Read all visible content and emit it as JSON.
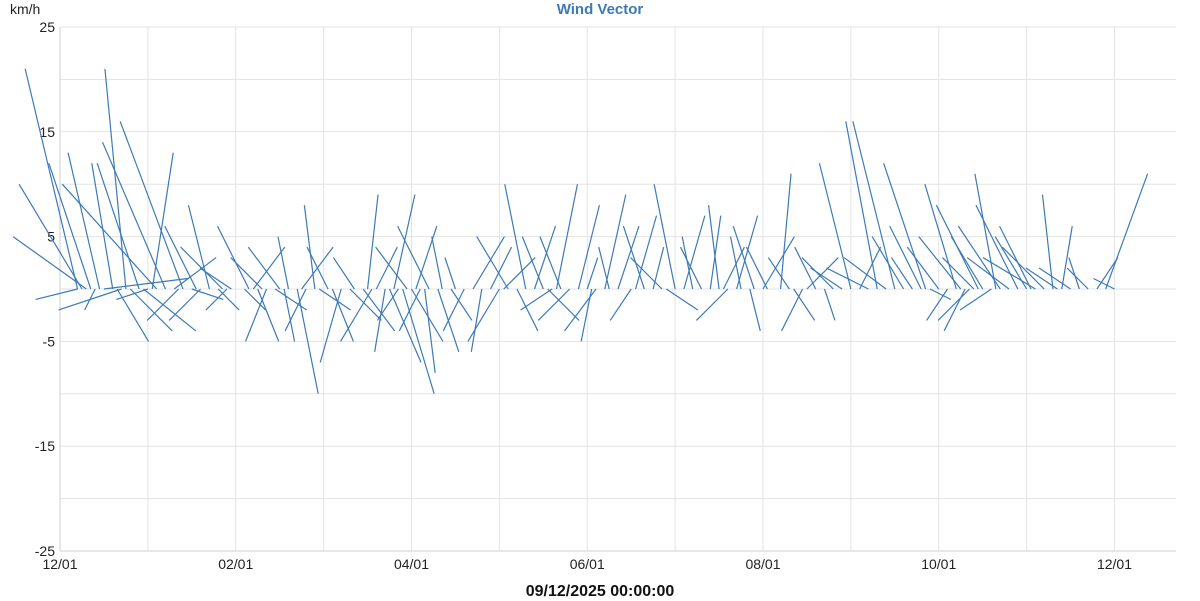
{
  "chart_data": {
    "type": "line",
    "subtype": "wind-vector",
    "title": "Wind Vector",
    "ylabel": "km/h",
    "ylim": [
      -25,
      25
    ],
    "yticks": [
      25,
      15,
      5,
      -5,
      -15,
      -25
    ],
    "x_tick_labels": [
      "12/01",
      "02/01",
      "04/01",
      "06/01",
      "08/01",
      "10/01",
      "12/01"
    ],
    "xlim_months": [
      0,
      12.7
    ],
    "grid": true,
    "line_color": "#3d7ab5",
    "footer": "09/12/2025 00:00:00",
    "series": [
      {
        "vectors": [
          {
            "t": 0.2,
            "u": -4,
            "v": -1
          },
          {
            "t": 0.2,
            "u": -5,
            "v": 21
          },
          {
            "t": 0.25,
            "u": -6,
            "v": 10
          },
          {
            "t": 0.3,
            "u": -7,
            "v": 5
          },
          {
            "t": 0.35,
            "u": -4,
            "v": 12
          },
          {
            "t": 0.4,
            "u": -1,
            "v": -2
          },
          {
            "t": 0.45,
            "u": -3,
            "v": 13
          },
          {
            "t": 0.5,
            "u": 8,
            "v": 1
          },
          {
            "t": 0.6,
            "u": -2,
            "v": 12
          },
          {
            "t": 0.65,
            "u": 3,
            "v": -5
          },
          {
            "t": 0.7,
            "u": -6,
            "v": -2
          },
          {
            "t": 0.75,
            "u": -2,
            "v": 21
          },
          {
            "t": 0.8,
            "u": 4,
            "v": -4
          },
          {
            "t": 0.9,
            "u": -4,
            "v": 12
          },
          {
            "t": 0.95,
            "u": 5,
            "v": -4
          },
          {
            "t": 1.0,
            "u": -3,
            "v": -1
          },
          {
            "t": 1.05,
            "u": 2,
            "v": 13
          },
          {
            "t": 1.1,
            "u": -9,
            "v": 10
          },
          {
            "t": 1.2,
            "u": -6,
            "v": 14
          },
          {
            "t": 1.3,
            "u": 4,
            "v": 3
          },
          {
            "t": 1.35,
            "u": -3,
            "v": -3
          },
          {
            "t": 1.4,
            "u": -6,
            "v": 16
          },
          {
            "t": 1.5,
            "u": 3,
            "v": -1
          },
          {
            "t": 1.55,
            "u": -3,
            "v": 6
          },
          {
            "t": 1.6,
            "u": -3,
            "v": -3
          },
          {
            "t": 1.7,
            "u": -2,
            "v": 8
          },
          {
            "t": 1.8,
            "u": 2,
            "v": -2
          },
          {
            "t": 1.85,
            "u": -4,
            "v": 4
          },
          {
            "t": 1.9,
            "u": -2,
            "v": -2
          },
          {
            "t": 1.95,
            "u": -3,
            "v": 2
          },
          {
            "t": 2.1,
            "u": 2,
            "v": -2
          },
          {
            "t": 2.15,
            "u": -3,
            "v": 6
          },
          {
            "t": 2.2,
            "u": 3,
            "v": 4
          },
          {
            "t": 2.25,
            "u": 2,
            "v": -5
          },
          {
            "t": 2.3,
            "u": -3,
            "v": 3
          },
          {
            "t": 2.35,
            "u": -2,
            "v": -5
          },
          {
            "t": 2.45,
            "u": 3,
            "v": -2
          },
          {
            "t": 2.5,
            "u": -3,
            "v": 4
          },
          {
            "t": 2.55,
            "u": 1,
            "v": -5
          },
          {
            "t": 2.6,
            "u": -1,
            "v": 5
          },
          {
            "t": 2.7,
            "u": 2,
            "v": -10
          },
          {
            "t": 2.75,
            "u": 3,
            "v": 4
          },
          {
            "t": 2.8,
            "u": -2,
            "v": -4
          },
          {
            "t": 2.9,
            "u": -1,
            "v": 8
          },
          {
            "t": 2.95,
            "u": 3,
            "v": -2
          },
          {
            "t": 3.05,
            "u": -2,
            "v": 4
          },
          {
            "t": 3.1,
            "u": 2,
            "v": -5
          },
          {
            "t": 3.2,
            "u": -2,
            "v": -7
          },
          {
            "t": 3.3,
            "u": 3,
            "v": -3
          },
          {
            "t": 3.35,
            "u": -2,
            "v": 3
          },
          {
            "t": 3.45,
            "u": 3,
            "v": -4
          },
          {
            "t": 3.5,
            "u": 1,
            "v": 9
          },
          {
            "t": 3.55,
            "u": -3,
            "v": -5
          },
          {
            "t": 3.6,
            "u": 2,
            "v": 4
          },
          {
            "t": 3.7,
            "u": -1,
            "v": -6
          },
          {
            "t": 3.75,
            "u": 3,
            "v": -7
          },
          {
            "t": 3.8,
            "u": 2,
            "v": 9
          },
          {
            "t": 3.85,
            "u": -2,
            "v": -3
          },
          {
            "t": 3.9,
            "u": 3,
            "v": -10
          },
          {
            "t": 3.95,
            "u": -3,
            "v": 4
          },
          {
            "t": 4.0,
            "u": 3,
            "v": -5
          },
          {
            "t": 4.05,
            "u": 2,
            "v": 6
          },
          {
            "t": 4.1,
            "u": -2,
            "v": -4
          },
          {
            "t": 4.15,
            "u": 1,
            "v": -8
          },
          {
            "t": 4.2,
            "u": -3,
            "v": 6
          },
          {
            "t": 4.3,
            "u": 2,
            "v": -6
          },
          {
            "t": 4.35,
            "u": -1,
            "v": 5
          },
          {
            "t": 4.45,
            "u": 2,
            "v": -3
          },
          {
            "t": 4.5,
            "u": -1,
            "v": 3
          },
          {
            "t": 4.6,
            "u": -2,
            "v": -4
          },
          {
            "t": 4.7,
            "u": 3,
            "v": 5
          },
          {
            "t": 4.8,
            "u": -1,
            "v": -6
          },
          {
            "t": 4.9,
            "u": 2,
            "v": 4
          },
          {
            "t": 5.0,
            "u": -3,
            "v": -5
          },
          {
            "t": 5.05,
            "u": 3,
            "v": 3
          },
          {
            "t": 5.1,
            "u": -3,
            "v": 5
          },
          {
            "t": 5.2,
            "u": 2,
            "v": -4
          },
          {
            "t": 5.3,
            "u": -2,
            "v": 10
          },
          {
            "t": 5.4,
            "u": 2,
            "v": 6
          },
          {
            "t": 5.5,
            "u": -2,
            "v": 5
          },
          {
            "t": 5.55,
            "u": 3,
            "v": -3
          },
          {
            "t": 5.6,
            "u": -3,
            "v": -2
          },
          {
            "t": 5.65,
            "u": 2,
            "v": 10
          },
          {
            "t": 5.7,
            "u": -2,
            "v": 5
          },
          {
            "t": 5.8,
            "u": -3,
            "v": -3
          },
          {
            "t": 5.9,
            "u": 2,
            "v": 8
          },
          {
            "t": 6.0,
            "u": 1,
            "v": 3
          },
          {
            "t": 6.05,
            "u": -1,
            "v": -5
          },
          {
            "t": 6.1,
            "u": -3,
            "v": -4
          },
          {
            "t": 6.2,
            "u": 2,
            "v": 9
          },
          {
            "t": 6.25,
            "u": -1,
            "v": 4
          },
          {
            "t": 6.35,
            "u": 2,
            "v": 6
          },
          {
            "t": 6.5,
            "u": -2,
            "v": -3
          },
          {
            "t": 6.55,
            "u": 2,
            "v": 7
          },
          {
            "t": 6.65,
            "u": -2,
            "v": 6
          },
          {
            "t": 6.75,
            "u": 1,
            "v": 4
          },
          {
            "t": 6.85,
            "u": -3,
            "v": 3
          },
          {
            "t": 6.9,
            "u": 3,
            "v": -2
          },
          {
            "t": 7.0,
            "u": -2,
            "v": 10
          },
          {
            "t": 7.1,
            "u": 2,
            "v": 7
          },
          {
            "t": 7.2,
            "u": -1,
            "v": 5
          },
          {
            "t": 7.3,
            "u": -2,
            "v": 4
          },
          {
            "t": 7.4,
            "u": 1,
            "v": 7
          },
          {
            "t": 7.5,
            "u": -1,
            "v": 8
          },
          {
            "t": 7.55,
            "u": 2,
            "v": 4
          },
          {
            "t": 7.6,
            "u": -3,
            "v": -3
          },
          {
            "t": 7.7,
            "u": 2,
            "v": 7
          },
          {
            "t": 7.75,
            "u": -1,
            "v": 5
          },
          {
            "t": 7.85,
            "u": 1,
            "v": -4
          },
          {
            "t": 7.9,
            "u": -2,
            "v": 6
          },
          {
            "t": 8.0,
            "u": 3,
            "v": 5
          },
          {
            "t": 8.05,
            "u": -2,
            "v": 4
          },
          {
            "t": 8.2,
            "u": 1,
            "v": 11
          },
          {
            "t": 8.3,
            "u": -2,
            "v": 3
          },
          {
            "t": 8.35,
            "u": 2,
            "v": -3
          },
          {
            "t": 8.45,
            "u": -2,
            "v": -4
          },
          {
            "t": 8.5,
            "u": 3,
            "v": 3
          },
          {
            "t": 8.6,
            "u": -2,
            "v": 4
          },
          {
            "t": 8.7,
            "u": 1,
            "v": -3
          },
          {
            "t": 8.8,
            "u": -3,
            "v": 3
          },
          {
            "t": 8.9,
            "u": -3,
            "v": 2
          },
          {
            "t": 9.0,
            "u": -3,
            "v": 12
          },
          {
            "t": 9.1,
            "u": 2,
            "v": 4
          },
          {
            "t": 9.2,
            "u": -4,
            "v": 2
          },
          {
            "t": 9.3,
            "u": -3,
            "v": 16
          },
          {
            "t": 9.4,
            "u": -4,
            "v": 3
          },
          {
            "t": 9.5,
            "u": -4,
            "v": 16
          },
          {
            "t": 9.6,
            "u": -3,
            "v": 5
          },
          {
            "t": 9.7,
            "u": -2,
            "v": 3
          },
          {
            "t": 9.8,
            "u": -3,
            "v": 6
          },
          {
            "t": 9.85,
            "u": -4,
            "v": 12
          },
          {
            "t": 9.9,
            "u": 2,
            "v": -1
          },
          {
            "t": 10.0,
            "u": -3,
            "v": 4
          },
          {
            "t": 10.1,
            "u": -2,
            "v": -3
          },
          {
            "t": 10.2,
            "u": -3,
            "v": 10
          },
          {
            "t": 10.25,
            "u": -4,
            "v": 5
          },
          {
            "t": 10.3,
            "u": -2,
            "v": -4
          },
          {
            "t": 10.35,
            "u": -3,
            "v": -3
          },
          {
            "t": 10.4,
            "u": -3,
            "v": 3
          },
          {
            "t": 10.45,
            "u": -4,
            "v": 8
          },
          {
            "t": 10.5,
            "u": -3,
            "v": 5
          },
          {
            "t": 10.6,
            "u": -3,
            "v": -2
          },
          {
            "t": 10.65,
            "u": -2,
            "v": 11
          },
          {
            "t": 10.7,
            "u": -4,
            "v": 6
          },
          {
            "t": 10.8,
            "u": -4,
            "v": 3
          },
          {
            "t": 10.9,
            "u": -4,
            "v": 8
          },
          {
            "t": 11.0,
            "u": -3,
            "v": 5
          },
          {
            "t": 11.05,
            "u": -3,
            "v": 6
          },
          {
            "t": 11.1,
            "u": -5,
            "v": 3
          },
          {
            "t": 11.2,
            "u": -4,
            "v": 4
          },
          {
            "t": 11.3,
            "u": -1,
            "v": 9
          },
          {
            "t": 11.35,
            "u": -3,
            "v": 2
          },
          {
            "t": 11.4,
            "u": 1,
            "v": 6
          },
          {
            "t": 11.5,
            "u": -3,
            "v": 2
          },
          {
            "t": 11.6,
            "u": -1,
            "v": 3
          },
          {
            "t": 11.7,
            "u": -2,
            "v": 2
          },
          {
            "t": 11.8,
            "u": 2,
            "v": 3
          },
          {
            "t": 11.9,
            "u": 4,
            "v": 11
          },
          {
            "t": 12.0,
            "u": -2,
            "v": 1
          }
        ]
      }
    ]
  }
}
